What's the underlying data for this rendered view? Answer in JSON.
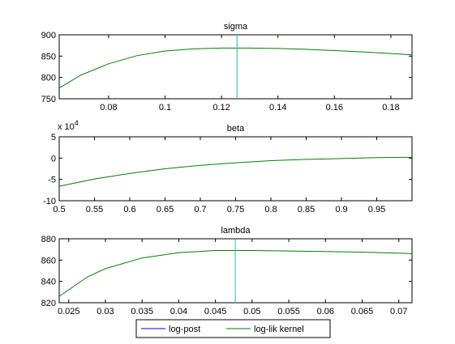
{
  "chart_data": [
    {
      "type": "line",
      "title": "sigma",
      "xlabel": "",
      "ylabel": "",
      "xlim": [
        0.0625,
        0.1875
      ],
      "ylim": [
        750,
        900
      ],
      "x_ticks": [
        0.08,
        0.1,
        0.12,
        0.14,
        0.16,
        0.18
      ],
      "x_tick_labels": [
        "0.08",
        "0.1",
        "0.12",
        "0.14",
        "0.16",
        "0.18"
      ],
      "y_ticks": [
        750,
        800,
        850,
        900
      ],
      "y_tick_labels": [
        "750",
        "800",
        "850",
        "900"
      ],
      "y_exponent_label": "",
      "grid": false,
      "vline_x": 0.1255,
      "series": [
        {
          "name": "log-lik kernel",
          "color": "#008000",
          "x": [
            0.0625,
            0.07,
            0.08,
            0.09,
            0.1,
            0.11,
            0.12,
            0.13,
            0.14,
            0.15,
            0.16,
            0.17,
            0.18,
            0.1875
          ],
          "y": [
            775,
            805,
            832,
            851,
            862,
            867,
            869,
            869,
            868,
            866,
            863,
            860,
            856,
            853
          ]
        }
      ]
    },
    {
      "type": "line",
      "title": "beta",
      "xlabel": "",
      "ylabel": "",
      "xlim": [
        0.5,
        1.0
      ],
      "ylim": [
        -10,
        5
      ],
      "x_ticks": [
        0.5,
        0.55,
        0.6,
        0.65,
        0.7,
        0.75,
        0.8,
        0.85,
        0.9,
        0.95
      ],
      "x_tick_labels": [
        "0.5",
        "0.55",
        "0.6",
        "0.65",
        "0.7",
        "0.75",
        "0.8",
        "0.85",
        "0.9",
        "0.95"
      ],
      "y_ticks": [
        -10,
        -5,
        0,
        5
      ],
      "y_tick_labels": [
        "-10",
        "-5",
        "0",
        "5"
      ],
      "y_exponent_label": "x 10",
      "y_exponent_power": "4",
      "grid": false,
      "vline_x": null,
      "series": [
        {
          "name": "log-lik kernel",
          "color": "#008000",
          "x": [
            0.5,
            0.55,
            0.6,
            0.65,
            0.7,
            0.75,
            0.8,
            0.85,
            0.9,
            0.95,
            1.0
          ],
          "y": [
            -6.6,
            -4.9,
            -3.6,
            -2.5,
            -1.7,
            -1.1,
            -0.6,
            -0.3,
            -0.1,
            0.1,
            0.2
          ]
        }
      ]
    },
    {
      "type": "line",
      "title": "lambda",
      "xlabel": "",
      "ylabel": "",
      "xlim": [
        0.0237,
        0.0718
      ],
      "ylim": [
        820,
        880
      ],
      "x_ticks": [
        0.025,
        0.03,
        0.035,
        0.04,
        0.045,
        0.05,
        0.055,
        0.06,
        0.065,
        0.07
      ],
      "x_tick_labels": [
        "0.025",
        "0.03",
        "0.035",
        "0.04",
        "0.045",
        "0.05",
        "0.055",
        "0.06",
        "0.065",
        "0.07"
      ],
      "y_ticks": [
        820,
        840,
        860,
        880
      ],
      "y_tick_labels": [
        "820",
        "840",
        "860",
        "880"
      ],
      "y_exponent_label": "",
      "grid": false,
      "vline_x": 0.0477,
      "series": [
        {
          "name": "log-lik kernel",
          "color": "#008000",
          "x": [
            0.0237,
            0.0275,
            0.03,
            0.035,
            0.04,
            0.045,
            0.05,
            0.055,
            0.06,
            0.065,
            0.07,
            0.0718
          ],
          "y": [
            826,
            844,
            852,
            862,
            867,
            869,
            869,
            868.5,
            868,
            867.5,
            866.5,
            866
          ]
        }
      ]
    }
  ],
  "legend": {
    "placement": "bottom-center",
    "items": [
      {
        "label": "log-post",
        "color": "#0000ff"
      },
      {
        "label": "log-lik kernel",
        "color": "#008000"
      }
    ]
  },
  "colors": {
    "vline": "#00c8c8",
    "axes": "#000000",
    "background": "#ffffff"
  }
}
